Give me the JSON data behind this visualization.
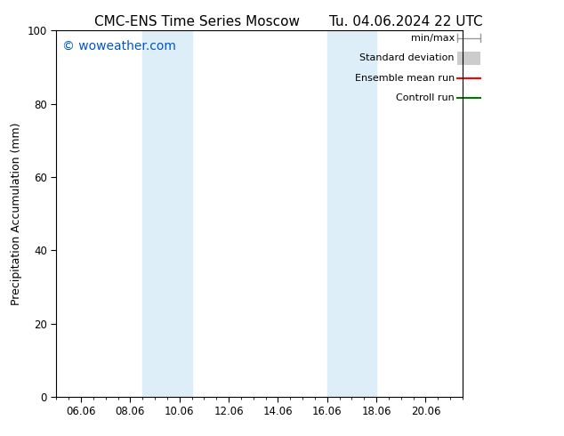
{
  "title_left": "CMC-ENS Time Series Moscow",
  "title_right": "Tu. 04.06.2024 22 UTC",
  "ylabel": "Precipitation Accumulation (mm)",
  "ylim": [
    0,
    100
  ],
  "xlim_num": [
    4.0,
    20.5
  ],
  "xtick_labels": [
    "06.06",
    "08.06",
    "10.06",
    "12.06",
    "14.06",
    "16.06",
    "18.06",
    "20.06"
  ],
  "xtick_positions": [
    5.0,
    7.0,
    9.0,
    11.0,
    13.0,
    15.0,
    17.0,
    19.0
  ],
  "ytick_positions": [
    0,
    20,
    40,
    60,
    80,
    100
  ],
  "shaded_bands": [
    {
      "x_start": 7.5,
      "x_end": 9.5,
      "color": "#ddeef8",
      "alpha": 1.0
    },
    {
      "x_start": 15.0,
      "x_end": 17.0,
      "color": "#ddeef8",
      "alpha": 1.0
    }
  ],
  "legend_items": [
    {
      "label": "min/max",
      "type": "minmax",
      "color": "#999999",
      "lw": 1.0
    },
    {
      "label": "Standard deviation",
      "type": "stddev",
      "color": "#cccccc",
      "lw": 5
    },
    {
      "label": "Ensemble mean run",
      "type": "line",
      "color": "#ff0000",
      "lw": 1.5
    },
    {
      "label": "Controll run",
      "type": "line",
      "color": "#007700",
      "lw": 1.5
    }
  ],
  "watermark_text": "© woweather.com",
  "watermark_color": "#0055cc",
  "watermark_fontsize": 10,
  "title_fontsize": 11,
  "axis_label_fontsize": 9,
  "tick_fontsize": 8.5,
  "legend_fontsize": 8,
  "bg_color": "#ffffff",
  "plot_bg_color": "#ffffff",
  "border_color": "#000000"
}
